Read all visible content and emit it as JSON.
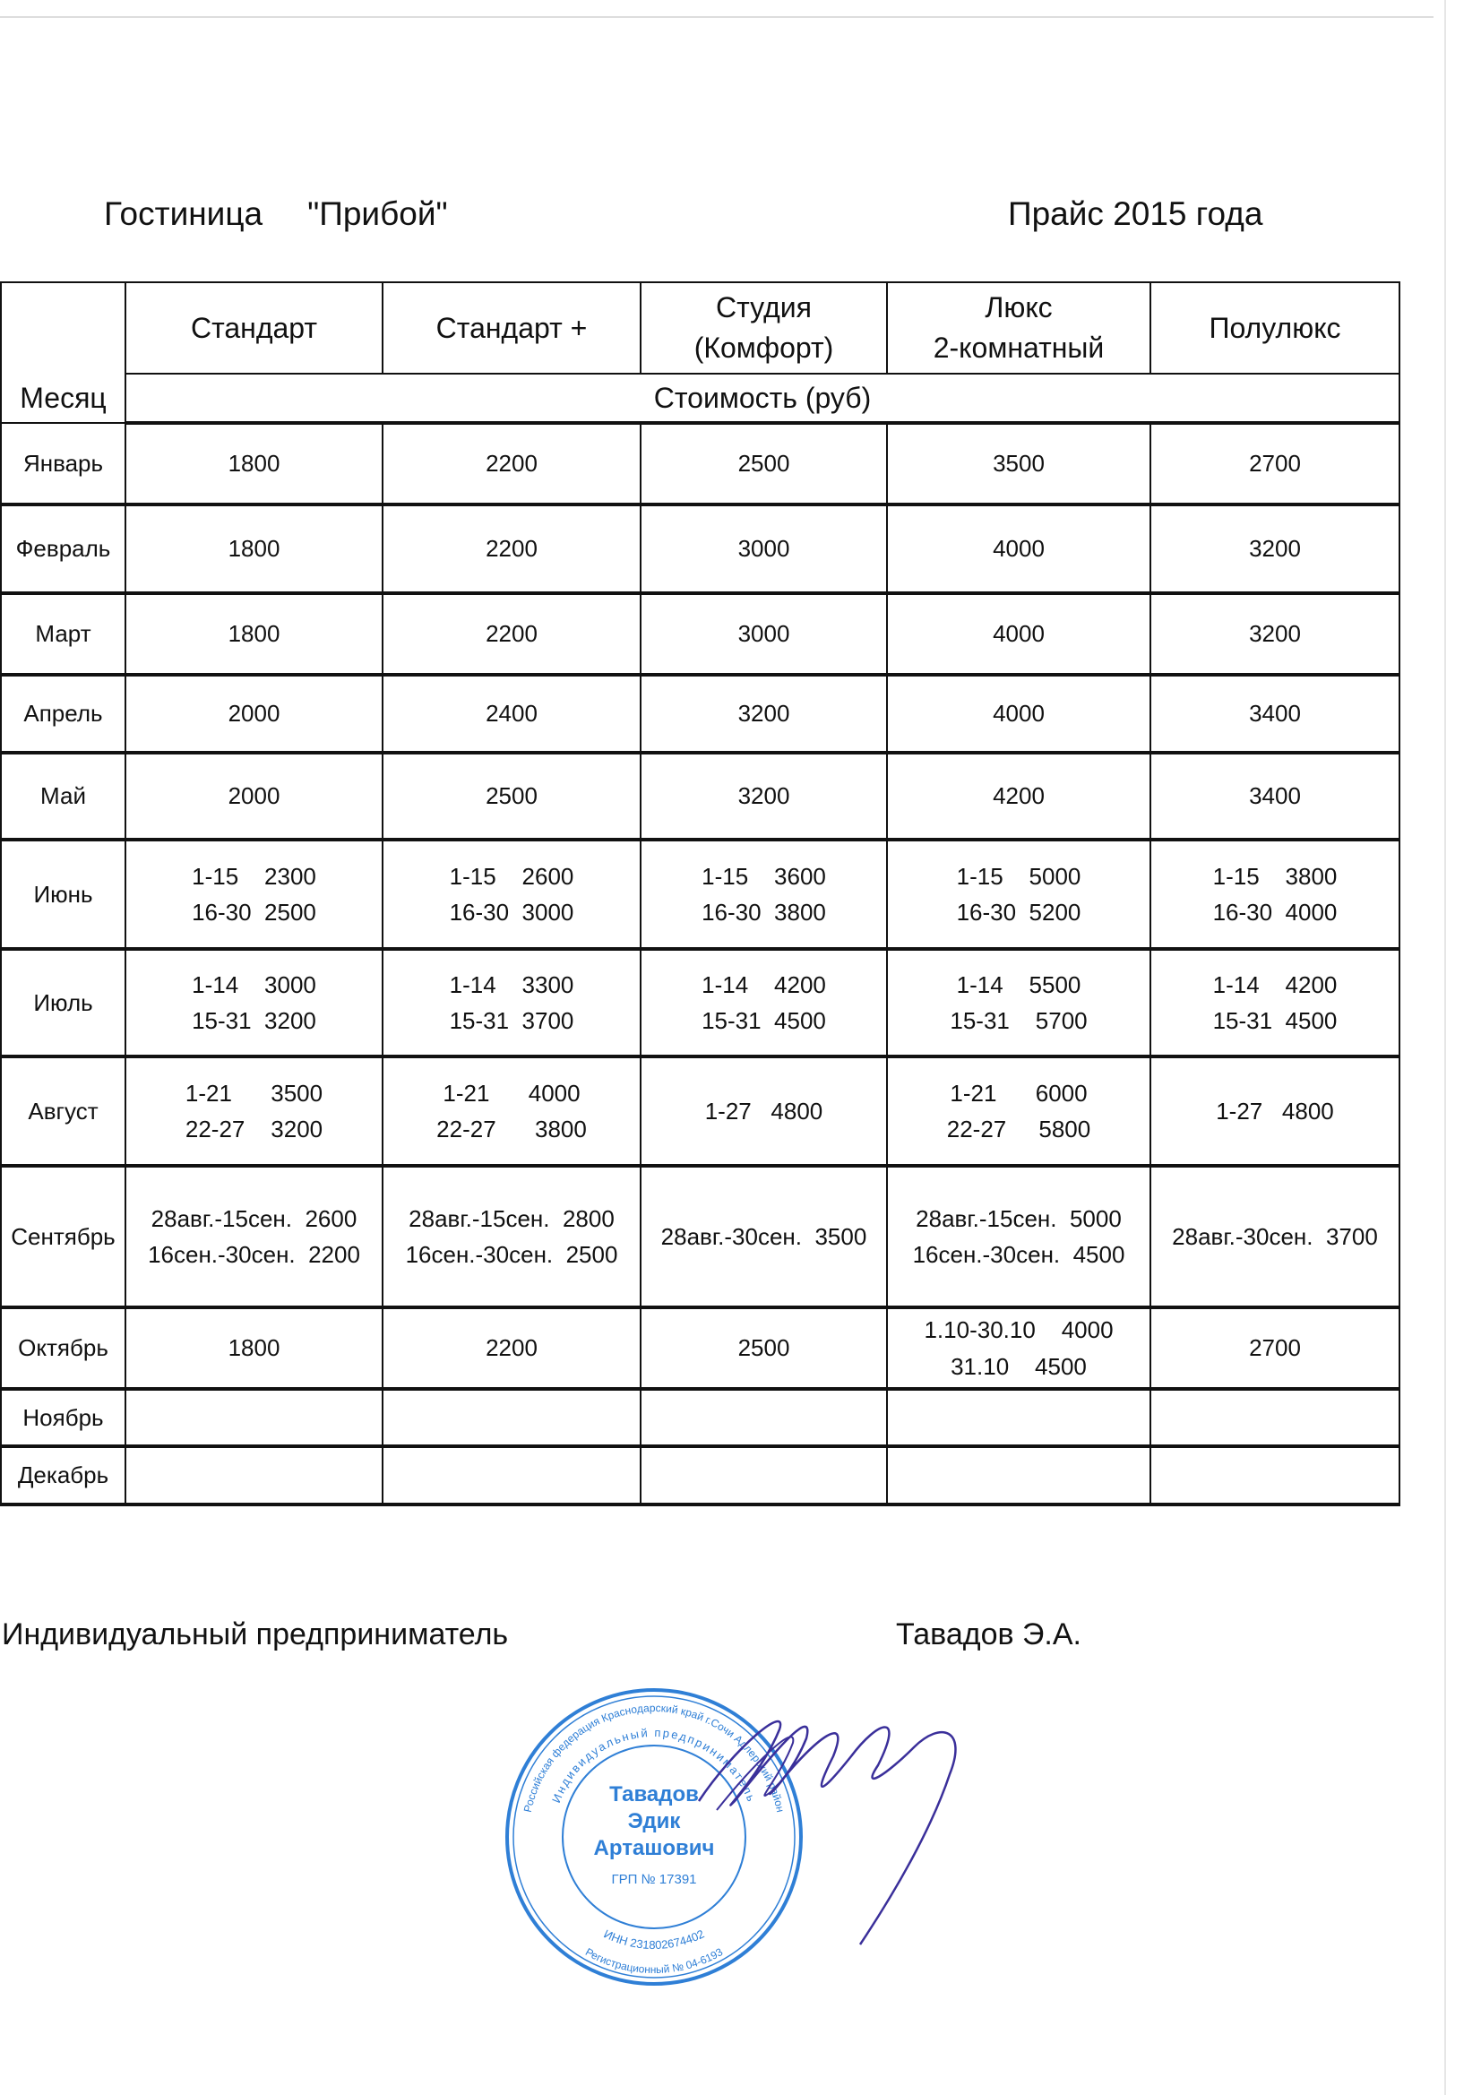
{
  "header": {
    "hotel_label": "Гостиница",
    "hotel_name": "\"Прибой\"",
    "price_title": "Прайс 2015 года"
  },
  "table": {
    "month_header": "Месяц",
    "columns": [
      "Стандарт",
      "Стандарт +",
      "Студия\n(Комфорт)",
      "Люкс\n2-комнатный",
      "Полулюкс"
    ],
    "subheader": "Стоимость (руб)",
    "rows": [
      {
        "month": "Январь",
        "cells": [
          "1800",
          "2200",
          "2500",
          "3500",
          "2700"
        ]
      },
      {
        "month": "Февраль",
        "cells": [
          "1800",
          "2200",
          "3000",
          "4000",
          "3200"
        ]
      },
      {
        "month": "Март",
        "cells": [
          "1800",
          "2200",
          "3000",
          "4000",
          "3200"
        ]
      },
      {
        "month": "Апрель",
        "cells": [
          "2000",
          "2400",
          "3200",
          "4000",
          "3400"
        ]
      },
      {
        "month": "Май",
        "cells": [
          "2000",
          "2500",
          "3200",
          "4200",
          "3400"
        ]
      },
      {
        "month": "Июнь",
        "cells": [
          "1-15    2300\n16-30  2500",
          "1-15    2600\n16-30  3000",
          "1-15    3600\n16-30  3800",
          "1-15    5000\n16-30  5200",
          "1-15    3800\n16-30  4000"
        ]
      },
      {
        "month": "Июль",
        "cells": [
          "1-14    3000\n15-31  3200",
          "1-14    3300\n15-31  3700",
          "1-14    4200\n15-31  4500",
          "1-14    5500\n15-31    5700",
          "1-14    4200\n15-31  4500"
        ]
      },
      {
        "month": "Август",
        "cells": [
          "1-21      3500\n22-27    3200",
          "1-21      4000\n22-27      3800",
          "1-27   4800",
          "1-21      6000\n22-27     5800",
          "1-27   4800"
        ]
      },
      {
        "month": "Сентябрь",
        "cells": [
          "28авг.-15сен.  2600\n16сен.-30сен.  2200",
          "28авг.-15сен.  2800\n16сен.-30сен.  2500",
          "28авг.-30сен.  3500",
          "28авг.-15сен.  5000\n16сен.-30сен.  4500",
          "28авг.-30сен.  3700"
        ]
      },
      {
        "month": "Октябрь",
        "cells": [
          "1800",
          "2200",
          "2500",
          "1.10-30.10    4000\n31.10    4500",
          "2700"
        ]
      },
      {
        "month": "Ноябрь",
        "cells": [
          "",
          "",
          "",
          "",
          ""
        ]
      },
      {
        "month": "Декабрь",
        "cells": [
          "",
          "",
          "",
          "",
          ""
        ]
      }
    ]
  },
  "signature": {
    "role": "Индивидуальный  предприниматель",
    "name": "Тавадов Э.А."
  },
  "stamp": {
    "outer_text": "Российская федерация Краснодарский край г.Сочи Адлерский район",
    "inner_text": "Индивидуальный предприниматель",
    "center": [
      "Тавадов",
      "Эдик",
      "Арташович"
    ],
    "grp": "ГРП № 17391",
    "inn": "ИНН 231802674402",
    "reg": "Регистрационный № 04-6193",
    "color": "#2f7fd6"
  },
  "signature_ink_color": "#3a2f9a"
}
